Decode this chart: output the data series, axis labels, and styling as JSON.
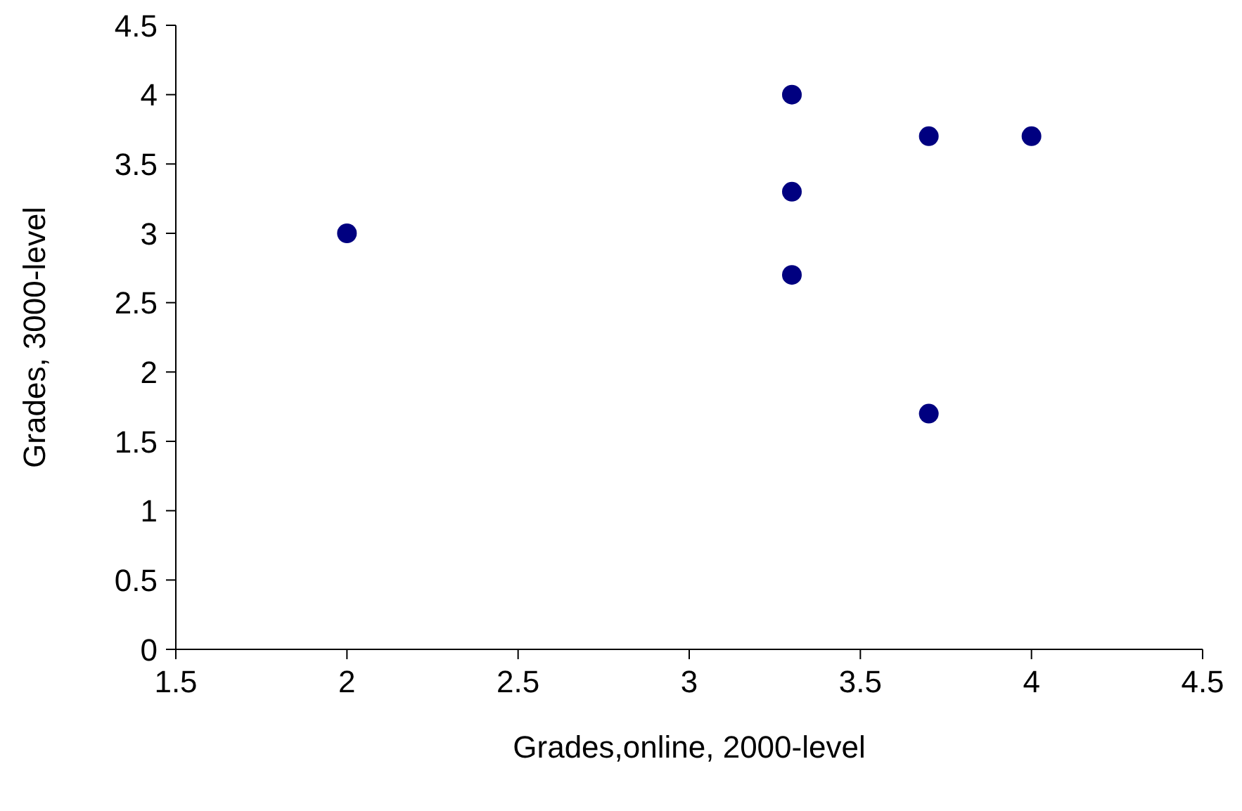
{
  "chart_data": {
    "type": "scatter",
    "xlabel": "Grades,online, 2000-level",
    "ylabel": "Grades, 3000-level",
    "x": [
      2,
      3.3,
      3.3,
      3.3,
      3.7,
      4,
      3.7
    ],
    "series": [
      {
        "color": "#000080",
        "values": [
          3,
          4,
          3.3,
          2.7,
          3.7,
          3.7,
          1.7
        ]
      }
    ],
    "xlim": [
      1.5,
      4.5
    ],
    "xticks": [
      1.5,
      2,
      2.5,
      3,
      3.5,
      4,
      4.5
    ],
    "ylim": [
      0,
      4.5
    ],
    "yticks": [
      0,
      0.5,
      1,
      1.5,
      2,
      2.5,
      3,
      3.5,
      4,
      4.5
    ],
    "grid": false,
    "legend": false,
    "marker": "circle"
  }
}
